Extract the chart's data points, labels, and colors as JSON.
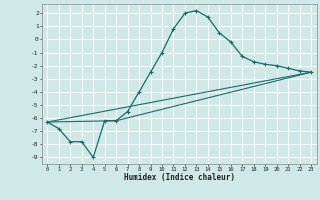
{
  "xlabel": "Humidex (Indice chaleur)",
  "ylabel": "",
  "bg_color": "#cfe8e8",
  "grid_color": "#ffffff",
  "line_color": "#1a6b6b",
  "xlim": [
    -0.5,
    23.5
  ],
  "ylim": [
    -9.5,
    2.7
  ],
  "xticks": [
    0,
    1,
    2,
    3,
    4,
    5,
    6,
    7,
    8,
    9,
    10,
    11,
    12,
    13,
    14,
    15,
    16,
    17,
    18,
    19,
    20,
    21,
    22,
    23
  ],
  "yticks": [
    2,
    1,
    0,
    -1,
    -2,
    -3,
    -4,
    -5,
    -6,
    -7,
    -8,
    -9
  ],
  "line1_x": [
    0,
    1,
    2,
    3,
    4,
    5,
    6,
    7,
    8,
    9,
    10,
    11,
    12,
    13,
    14,
    15,
    16,
    17,
    18,
    19,
    20,
    21,
    22,
    23
  ],
  "line1_y": [
    -6.3,
    -6.8,
    -7.8,
    -7.8,
    -9.0,
    -6.2,
    -6.2,
    -5.5,
    -4.0,
    -2.5,
    -1.0,
    0.8,
    2.0,
    2.2,
    1.7,
    0.5,
    -0.2,
    -1.3,
    -1.7,
    -1.9,
    -2.0,
    -2.2,
    -2.4,
    -2.5
  ],
  "line2_x": [
    0,
    6,
    23
  ],
  "line2_y": [
    -6.3,
    -6.2,
    -2.5
  ],
  "line3_x": [
    0,
    23
  ],
  "line3_y": [
    -6.3,
    -2.5
  ]
}
